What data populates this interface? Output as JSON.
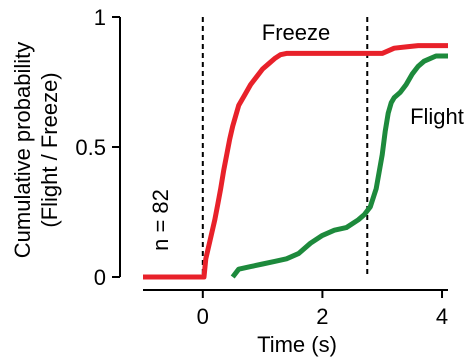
{
  "chart_data": {
    "type": "line",
    "xlabel": "Time (s)",
    "ylabel_line1": "Cumulative probability",
    "ylabel_line2": "(Flight / Freeze)",
    "xlim": [
      -1,
      4.1
    ],
    "ylim": [
      0,
      1
    ],
    "x_ticks": [
      0,
      2,
      4
    ],
    "x_tick_labels": [
      "0",
      "2",
      "4"
    ],
    "y_ticks": [
      0,
      0.5,
      1
    ],
    "y_tick_labels": [
      "0",
      "0.5",
      "1"
    ],
    "vlines": [
      0,
      2.75
    ],
    "annotation": "n = 82",
    "series": [
      {
        "name": "Freeze",
        "color": "#e8212a",
        "x": [
          -1.0,
          0.02,
          0.05,
          0.1,
          0.15,
          0.2,
          0.25,
          0.3,
          0.35,
          0.4,
          0.45,
          0.5,
          0.55,
          0.6,
          0.7,
          0.8,
          0.9,
          1.0,
          1.1,
          1.2,
          1.3,
          1.4,
          1.5,
          1.7,
          2.0,
          2.5,
          3.0,
          3.2,
          3.4,
          3.6,
          3.8,
          4.1
        ],
        "y": [
          0.0,
          0.0,
          0.07,
          0.12,
          0.17,
          0.22,
          0.28,
          0.34,
          0.41,
          0.47,
          0.53,
          0.58,
          0.62,
          0.66,
          0.7,
          0.74,
          0.77,
          0.8,
          0.82,
          0.84,
          0.855,
          0.86,
          0.86,
          0.86,
          0.86,
          0.86,
          0.86,
          0.88,
          0.885,
          0.89,
          0.89,
          0.89
        ]
      },
      {
        "name": "Flight",
        "color": "#1d8a3c",
        "x": [
          0.5,
          0.6,
          0.8,
          1.0,
          1.2,
          1.4,
          1.6,
          1.8,
          2.0,
          2.2,
          2.4,
          2.6,
          2.7,
          2.8,
          2.9,
          3.0,
          3.05,
          3.1,
          3.15,
          3.2,
          3.3,
          3.4,
          3.5,
          3.6,
          3.7,
          3.8,
          3.9,
          4.1
        ],
        "y": [
          0.0,
          0.03,
          0.04,
          0.05,
          0.06,
          0.07,
          0.09,
          0.13,
          0.16,
          0.18,
          0.19,
          0.22,
          0.24,
          0.27,
          0.34,
          0.47,
          0.56,
          0.63,
          0.67,
          0.69,
          0.71,
          0.74,
          0.78,
          0.81,
          0.83,
          0.84,
          0.85,
          0.85
        ]
      }
    ]
  }
}
